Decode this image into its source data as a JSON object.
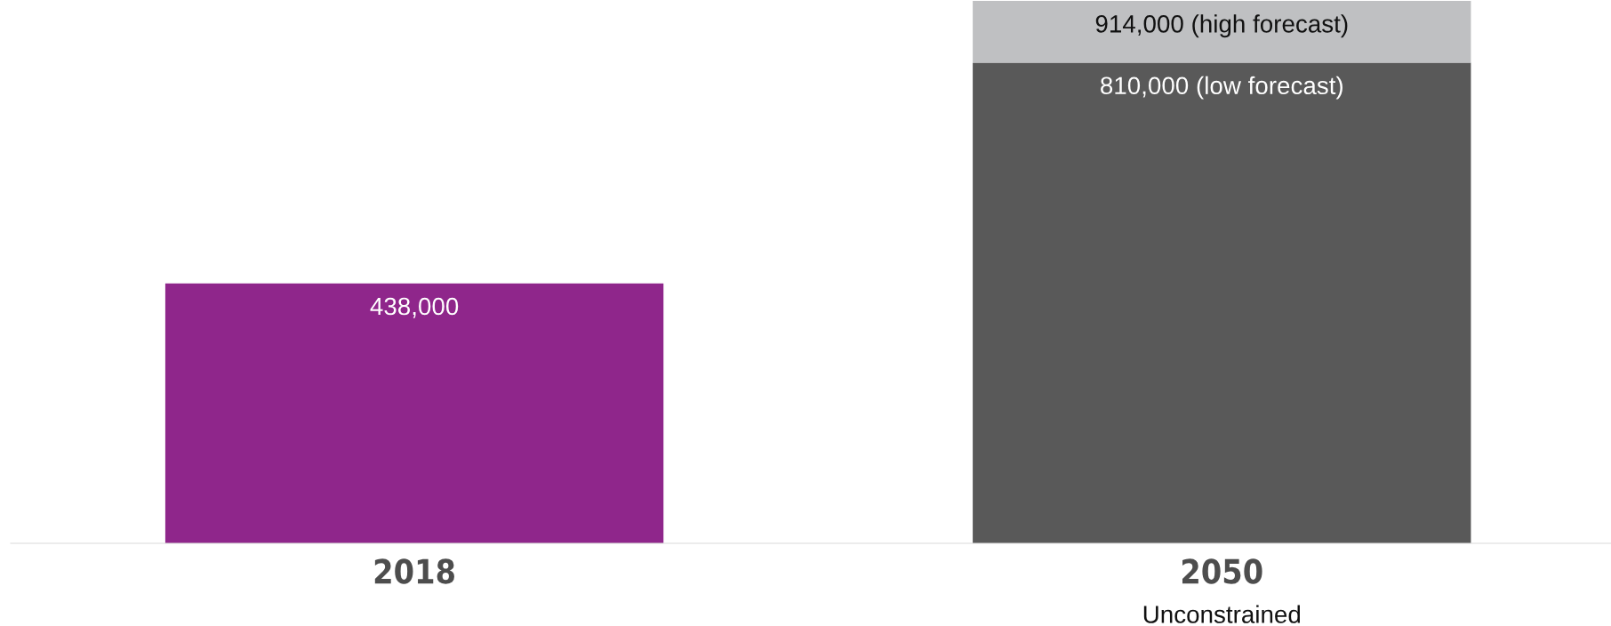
{
  "chart_data": {
    "type": "bar",
    "stacked": true,
    "categories": [
      "2018",
      "2050"
    ],
    "ylim": [
      0,
      920000
    ],
    "tick_labels": "x",
    "grid": false,
    "legend": false,
    "series": [
      {
        "color": "#8f268b",
        "values": [
          438000,
          null
        ],
        "value_labels": [
          "438,000",
          null
        ]
      },
      {
        "color": "#595959",
        "values": [
          null,
          810000
        ],
        "value_labels": [
          null,
          "810,000 (low forecast)"
        ]
      },
      {
        "color": "#bfc0c2",
        "values": [
          null,
          104000
        ]
      }
    ],
    "annotations": [
      "Unconstrained",
      {
        "text": "914,000 (high forecast)",
        "x": "2050",
        "y": 914000
      }
    ]
  }
}
